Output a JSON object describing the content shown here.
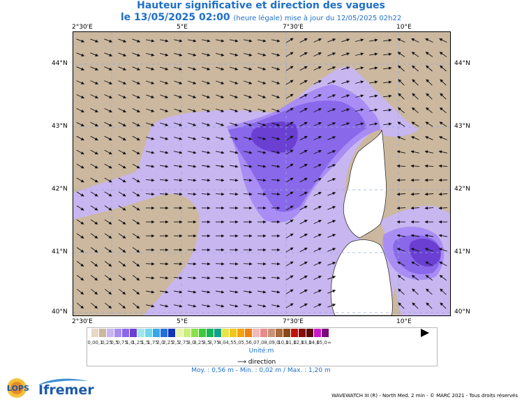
{
  "title_line1": "Hauteur significative et direction des vagues",
  "title_line2_date": "le 13/05/2025 02:00",
  "title_line2_note": "(heure légale) mise à jour du 12/05/2025 02h22",
  "lon_ticks": [
    "2°30'E",
    "5°E",
    "7°30'E",
    "10°E"
  ],
  "lat_ticks": [
    "44°N",
    "43°N",
    "42°N",
    "41°N",
    "40°N"
  ],
  "legend": {
    "labels": [
      "0,0",
      "0,1",
      "0,25",
      "0,5",
      "0,75",
      "1,0",
      "1,25",
      "1,5",
      "1,75",
      "2,0",
      "2,25",
      "2,5",
      "2,75",
      "3,0",
      "3,25",
      "3,5",
      "3,75",
      "4,0",
      "4,5",
      "5,0",
      "5,5",
      "6,0",
      "7,0",
      "8,0",
      "9,0",
      "10,0",
      "11,0",
      "12,0",
      "13,0",
      "14,0",
      "15,0",
      "∞"
    ],
    "colors": [
      "#e9d8c6",
      "#cbb89f",
      "#c8b6f0",
      "#a98df5",
      "#8a68ea",
      "#6a3fd2",
      "#9ee7ee",
      "#6ed7ec",
      "#35a8ea",
      "#1f6fe0",
      "#1234b8",
      "#e8f4b0",
      "#c8f07a",
      "#8ae04a",
      "#3ecb3a",
      "#19b45a",
      "#12a088",
      "#e6e24a",
      "#f2c51a",
      "#f4a210",
      "#ef7e10",
      "#f4b8b8",
      "#ec8a8a",
      "#c89478",
      "#a86a3e",
      "#8a4a18",
      "#c01010",
      "#8a0a0a",
      "#5a0a0a",
      "#c81ac8",
      "#7a0a7a"
    ],
    "unit": "Unité:m",
    "direction_label": "direction"
  },
  "stats": "Moy. : 0,56 m   -   Min. : 0,02 m / Max. : 1,20 m",
  "credit": "WAVEWATCH III (R) - North Med. 2 min - © MARC 2021 - Tous droits réservés",
  "logos": {
    "lops": "LOPS",
    "ifremer": "Ifremer"
  }
}
